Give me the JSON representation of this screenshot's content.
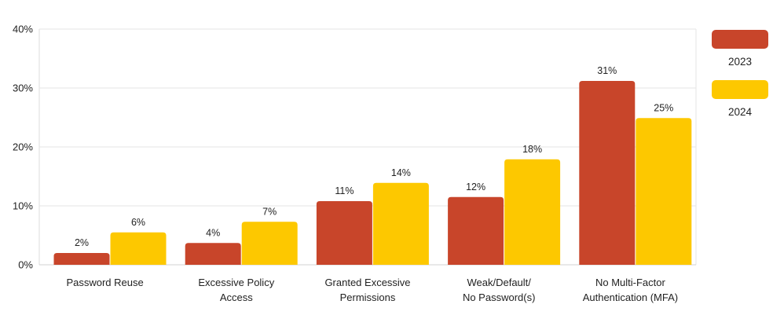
{
  "chart_data": {
    "type": "bar",
    "title": "",
    "xlabel": "",
    "ylabel": "",
    "ylim": [
      0,
      40
    ],
    "yticks": [
      0,
      10,
      20,
      30,
      40
    ],
    "ytick_labels": [
      "0%",
      "10%",
      "20%",
      "30%",
      "40%"
    ],
    "grid": true,
    "legend_position": "right",
    "categories": [
      [
        "Password Reuse"
      ],
      [
        "Excessive Policy",
        "Access"
      ],
      [
        "Granted Excessive",
        "Permissions"
      ],
      [
        "Weak/Default/",
        "No Password(s)"
      ],
      [
        "No Multi-Factor",
        "Authentication (MFA)"
      ]
    ],
    "series": [
      {
        "name": "2023",
        "color": "#C8452A",
        "values": [
          2.0,
          3.7,
          10.8,
          11.5,
          31.2
        ],
        "labels": [
          "2%",
          "4%",
          "11%",
          "12%",
          "31%"
        ]
      },
      {
        "name": "2024",
        "color": "#FDC800",
        "values": [
          5.5,
          7.3,
          13.9,
          17.9,
          24.9
        ],
        "labels": [
          "6%",
          "7%",
          "14%",
          "18%",
          "25%"
        ]
      }
    ]
  }
}
